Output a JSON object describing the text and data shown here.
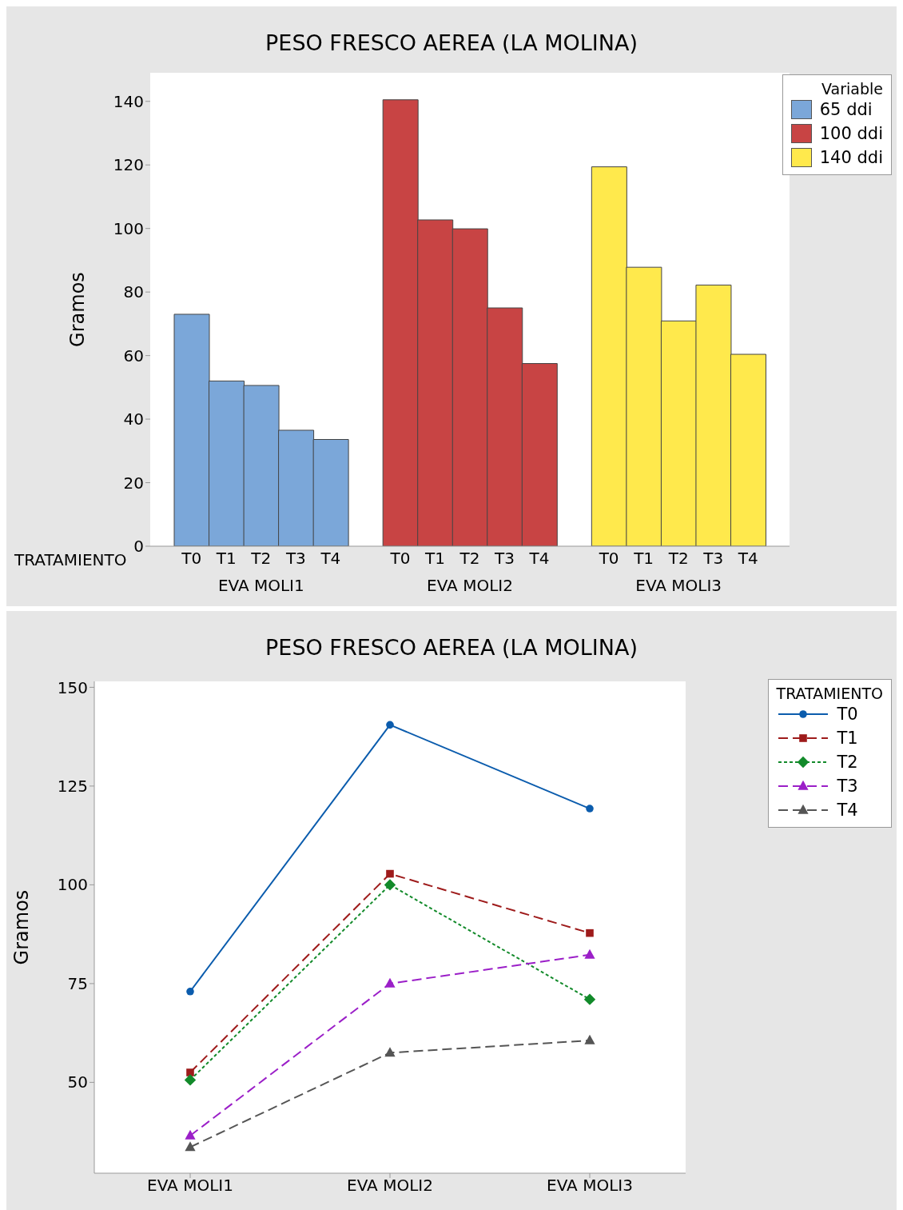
{
  "chart_data": [
    {
      "type": "bar",
      "title": "PESO FRESCO AEREA (LA MOLINA)",
      "xlabel": "TRATAMIENTO",
      "ylabel": "Gramos",
      "legend_title": "Variable",
      "legend": "top right",
      "categories": [
        "T0",
        "T1",
        "T2",
        "T3",
        "T4",
        null,
        "T0",
        "T1",
        "T2",
        "T3",
        "T4",
        null,
        "T0",
        "T1",
        "T2",
        "T3",
        "T4"
      ],
      "series": [
        {
          "name": "65 ddi",
          "color": "#7ba7d9",
          "values": [
            73,
            52,
            50.6,
            36.5,
            33.6,
            null,
            null,
            null,
            null,
            null,
            null,
            null,
            null,
            null,
            null,
            null,
            null
          ]
        },
        {
          "name": "100 ddi",
          "color": "#c84444",
          "values": [
            null,
            null,
            null,
            null,
            null,
            null,
            140.5,
            102.7,
            99.9,
            75,
            57.5,
            null,
            null,
            null,
            null,
            null,
            null
          ]
        },
        {
          "name": "140 ddi",
          "color": "#ffe94c",
          "values": [
            null,
            null,
            null,
            null,
            null,
            null,
            null,
            null,
            null,
            null,
            null,
            null,
            119.4,
            87.8,
            70.9,
            82.2,
            60.4
          ]
        }
      ],
      "annotations": [
        "EVA MOLI1",
        "EVA MOLI2",
        "EVA MOLI3"
      ],
      "ylim": [
        0,
        149
      ],
      "yticks": [
        0,
        20,
        40,
        60,
        80,
        100,
        120,
        140
      ],
      "grid": false
    },
    {
      "type": "line",
      "title": "PESO FRESCO AEREA (LA MOLINA)",
      "ylabel": "Gramos",
      "legend_title": "TRATAMIENTO",
      "legend": "top right",
      "categories": [
        "EVA MOLI1",
        "EVA MOLI2",
        "EVA MOLI3"
      ],
      "series": [
        {
          "name": "T0",
          "color": "#0b5cad",
          "marker": "circle",
          "line_style": "solid",
          "values": [
            73,
            140.5,
            119.3
          ]
        },
        {
          "name": "T1",
          "color": "#9e1b1b",
          "marker": "square",
          "line_style": "dashed",
          "values": [
            52.5,
            102.8,
            87.8
          ]
        },
        {
          "name": "T2",
          "color": "#128a2a",
          "marker": "diamond",
          "line_style": "dotted",
          "values": [
            50.6,
            100,
            71
          ]
        },
        {
          "name": "T3",
          "color": "#9b1fc8",
          "marker": "triangle",
          "line_style": "dashed",
          "values": [
            36.5,
            75,
            82.3
          ]
        },
        {
          "name": "T4",
          "color": "#555555",
          "marker": "triangle",
          "line_style": "dashed",
          "values": [
            33.6,
            57.5,
            60.6
          ]
        }
      ],
      "ylim": [
        27,
        151.5
      ],
      "yticks": [
        50,
        75,
        100,
        125,
        150
      ],
      "grid": false
    }
  ]
}
